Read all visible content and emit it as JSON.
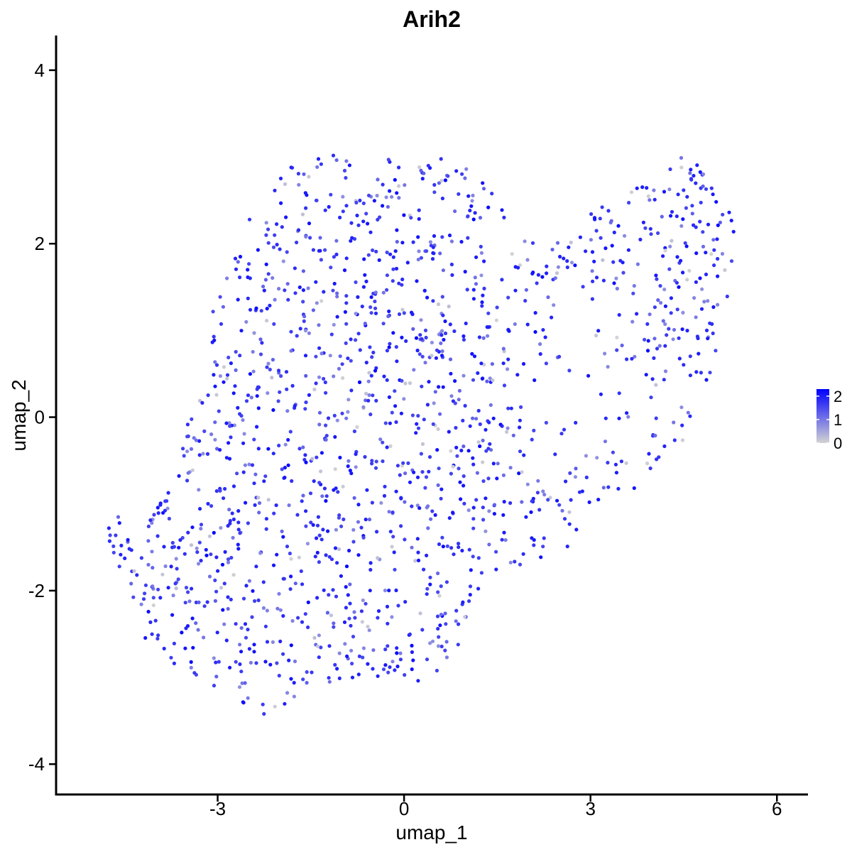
{
  "chart_data": {
    "type": "scatter",
    "title": "Arih2",
    "xlabel": "umap_1",
    "ylabel": "umap_2",
    "xlim": [
      -5.6,
      6.5
    ],
    "ylim": [
      -4.35,
      4.4
    ],
    "x_ticks": [
      -3,
      0,
      3,
      6
    ],
    "y_ticks": [
      -4,
      -2,
      0,
      2,
      4
    ],
    "x_tick_labels": [
      "-3",
      "0",
      "3",
      "6"
    ],
    "y_tick_labels": [
      "-4",
      "-2",
      "0",
      "2",
      "4"
    ],
    "grid": false,
    "legend": {
      "placement": "right",
      "type": "continuous colorbar",
      "ticks": [
        0,
        1,
        2
      ],
      "tick_labels": [
        "0",
        "1",
        "2"
      ],
      "range": [
        0,
        2.3
      ],
      "low_color": "#d3d3d3",
      "high_color": "#0000ff"
    },
    "n_points": 1600,
    "point_color_low": "#d3d3d3",
    "point_color_high": "#0000ff",
    "value_range": [
      0,
      2.3
    ],
    "cloud_outline_xy": [
      [
        -4.8,
        -1.25
      ],
      [
        -4.55,
        -1.15
      ],
      [
        -4.25,
        -1.4
      ],
      [
        -3.9,
        -0.7
      ],
      [
        -3.6,
        -0.3
      ],
      [
        -3.4,
        0.2
      ],
      [
        -3.2,
        0.9
      ],
      [
        -3.0,
        1.5
      ],
      [
        -2.7,
        2.0
      ],
      [
        -2.3,
        2.6
      ],
      [
        -1.8,
        2.9
      ],
      [
        -1.2,
        3.05
      ],
      [
        -0.5,
        3.05
      ],
      [
        0.2,
        3.15
      ],
      [
        0.8,
        2.95
      ],
      [
        1.6,
        2.85
      ],
      [
        1.7,
        2.5
      ],
      [
        1.9,
        2.1
      ],
      [
        2.3,
        1.9
      ],
      [
        2.9,
        2.3
      ],
      [
        3.5,
        2.6
      ],
      [
        4.1,
        2.7
      ],
      [
        4.5,
        3.05
      ],
      [
        4.9,
        2.8
      ],
      [
        5.2,
        2.5
      ],
      [
        5.35,
        2.1
      ],
      [
        5.3,
        1.6
      ],
      [
        5.1,
        1.0
      ],
      [
        4.9,
        0.3
      ],
      [
        4.5,
        -0.3
      ],
      [
        3.9,
        -0.7
      ],
      [
        3.3,
        -1.1
      ],
      [
        2.8,
        -1.45
      ],
      [
        2.3,
        -1.6
      ],
      [
        1.6,
        -1.8
      ],
      [
        1.1,
        -2.1
      ],
      [
        1.0,
        -2.6
      ],
      [
        0.7,
        -2.9
      ],
      [
        0.1,
        -3.1
      ],
      [
        -0.6,
        -3.0
      ],
      [
        -1.3,
        -3.1
      ],
      [
        -1.8,
        -3.3
      ],
      [
        -2.3,
        -3.5
      ],
      [
        -2.8,
        -3.2
      ],
      [
        -3.3,
        -3.0
      ],
      [
        -3.9,
        -2.9
      ],
      [
        -4.2,
        -2.5
      ],
      [
        -4.4,
        -2.0
      ],
      [
        -4.6,
        -1.7
      ],
      [
        -4.8,
        -1.4
      ]
    ],
    "isolated_points": [
      {
        "x": -4.75,
        "y": -1.28,
        "value": 1.9
      },
      {
        "x": -4.6,
        "y": -1.15,
        "value": 1.2
      },
      {
        "x": -4.58,
        "y": -1.22,
        "value": 2.0
      },
      {
        "x": -4.55,
        "y": -1.48,
        "value": 1.9
      },
      {
        "x": -4.3,
        "y": -1.82,
        "value": 1.8
      }
    ]
  }
}
